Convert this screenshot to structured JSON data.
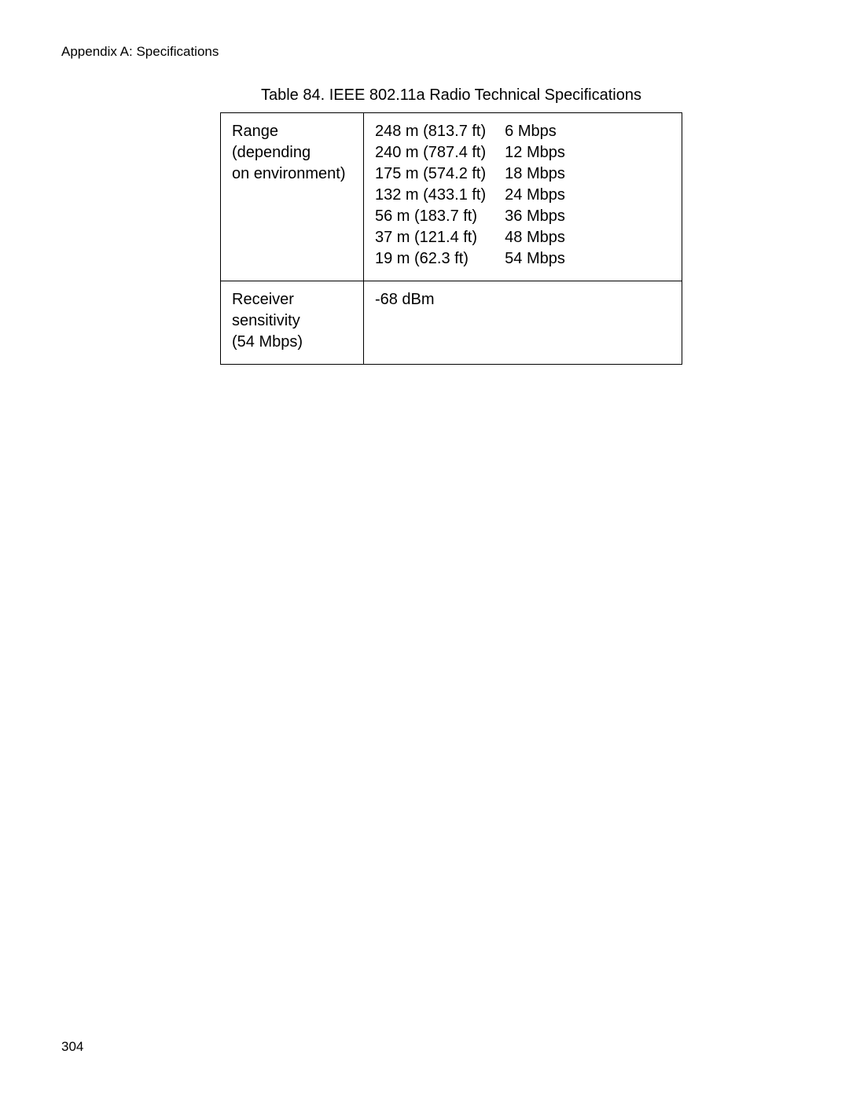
{
  "header": {
    "text": "Appendix A: Specifications"
  },
  "table": {
    "caption": "Table 84. IEEE 802.11a Radio Technical Specifications",
    "row1": {
      "label_line1": "Range (depending",
      "label_line2": "on environment)",
      "distances": [
        "248 m (813.7 ft)",
        "240 m (787.4 ft)",
        "175 m (574.2 ft)",
        "132 m (433.1 ft)",
        "56 m (183.7 ft)",
        "37 m (121.4 ft)",
        "19 m (62.3 ft)"
      ],
      "rates": [
        "6 Mbps",
        "12 Mbps",
        "18 Mbps",
        "24 Mbps",
        "36 Mbps",
        "48 Mbps",
        "54 Mbps"
      ]
    },
    "row2": {
      "label_line1": "Receiver sensitivity",
      "label_line2": "(54 Mbps)",
      "value": "-68 dBm"
    }
  },
  "footer": {
    "page_number": "304"
  }
}
